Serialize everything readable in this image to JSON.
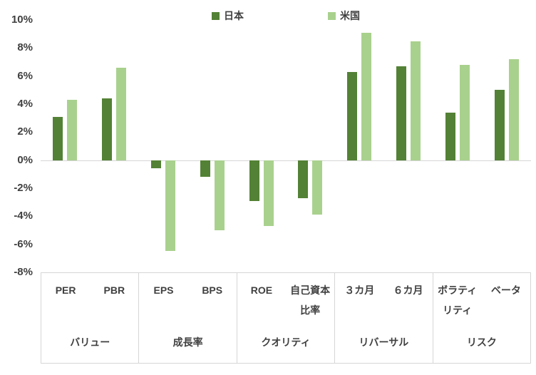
{
  "chart_data": {
    "type": "bar",
    "title": "",
    "xlabel": "",
    "ylabel": "",
    "ylim": [
      -8,
      10
    ],
    "ytick_step": 2,
    "yticks": [
      "10%",
      "8%",
      "6%",
      "4%",
      "2%",
      "0%",
      "-2%",
      "-4%",
      "-6%",
      "-8%"
    ],
    "grid": false,
    "legend_position": "top",
    "groups": [
      {
        "label": "バリュー",
        "categories": [
          "PER",
          "PBR"
        ]
      },
      {
        "label": "成長率",
        "categories": [
          "EPS",
          "BPS"
        ]
      },
      {
        "label": "クオリティ",
        "categories": [
          "ROE",
          "自己資本比率"
        ]
      },
      {
        "label": "リバーサル",
        "categories": [
          "３カ月",
          "６カ月"
        ]
      },
      {
        "label": "リスク",
        "categories": [
          "ボラティリティ",
          "ベータ"
        ]
      }
    ],
    "series": [
      {
        "name": "日本",
        "color": "#538135",
        "values": [
          3.1,
          4.4,
          -0.6,
          -1.2,
          -2.9,
          -2.7,
          6.3,
          6.7,
          3.4,
          5.0
        ]
      },
      {
        "name": "米国",
        "color": "#a9d18e",
        "values": [
          4.3,
          6.6,
          -6.5,
          -5.0,
          -4.7,
          -3.9,
          9.1,
          8.5,
          6.8,
          7.2
        ]
      }
    ]
  }
}
